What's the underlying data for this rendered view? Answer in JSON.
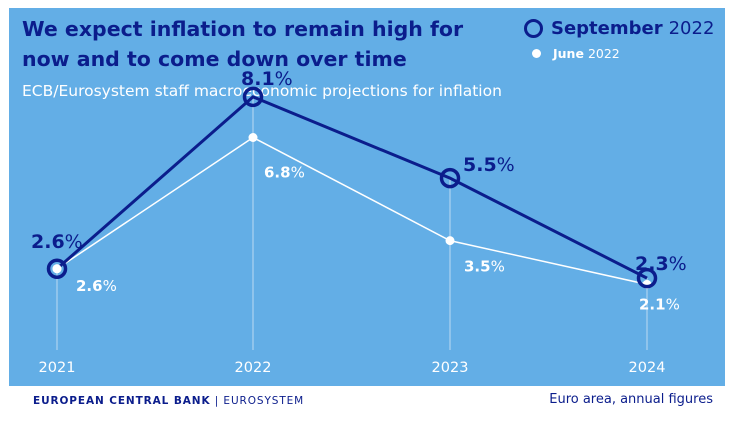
{
  "header": {
    "title": "We expect inflation to remain high for now and to come down over time",
    "subtitle": "ECB/Eurosystem staff macroeconomic projections for inflation"
  },
  "legend": {
    "september": {
      "month": "September",
      "year": "2022"
    },
    "june": {
      "month": "June",
      "year": "2022"
    }
  },
  "footer": {
    "org_bold": "EUROPEAN CENTRAL BANK",
    "org_rest": " | EUROSYSTEM",
    "note": "Euro area, annual figures"
  },
  "colors": {
    "background": "#63aee6",
    "september": "#0b1d8c",
    "june": "#ffffff",
    "axis_text": "#ffffff"
  },
  "chart_data": {
    "type": "line",
    "categories": [
      "2021",
      "2022",
      "2023",
      "2024"
    ],
    "series": [
      {
        "name": "September 2022",
        "values": [
          2.6,
          8.1,
          5.5,
          2.3
        ],
        "labels": [
          "2.6%",
          "8.1%",
          "5.5%",
          "2.3%"
        ]
      },
      {
        "name": "June 2022",
        "values": [
          2.6,
          6.8,
          3.5,
          2.1
        ],
        "labels": [
          "2.6%",
          "6.8%",
          "3.5%",
          "2.1%"
        ]
      }
    ],
    "ylim": [
      0,
      10
    ],
    "grid": false,
    "legend_position": "top-right"
  }
}
